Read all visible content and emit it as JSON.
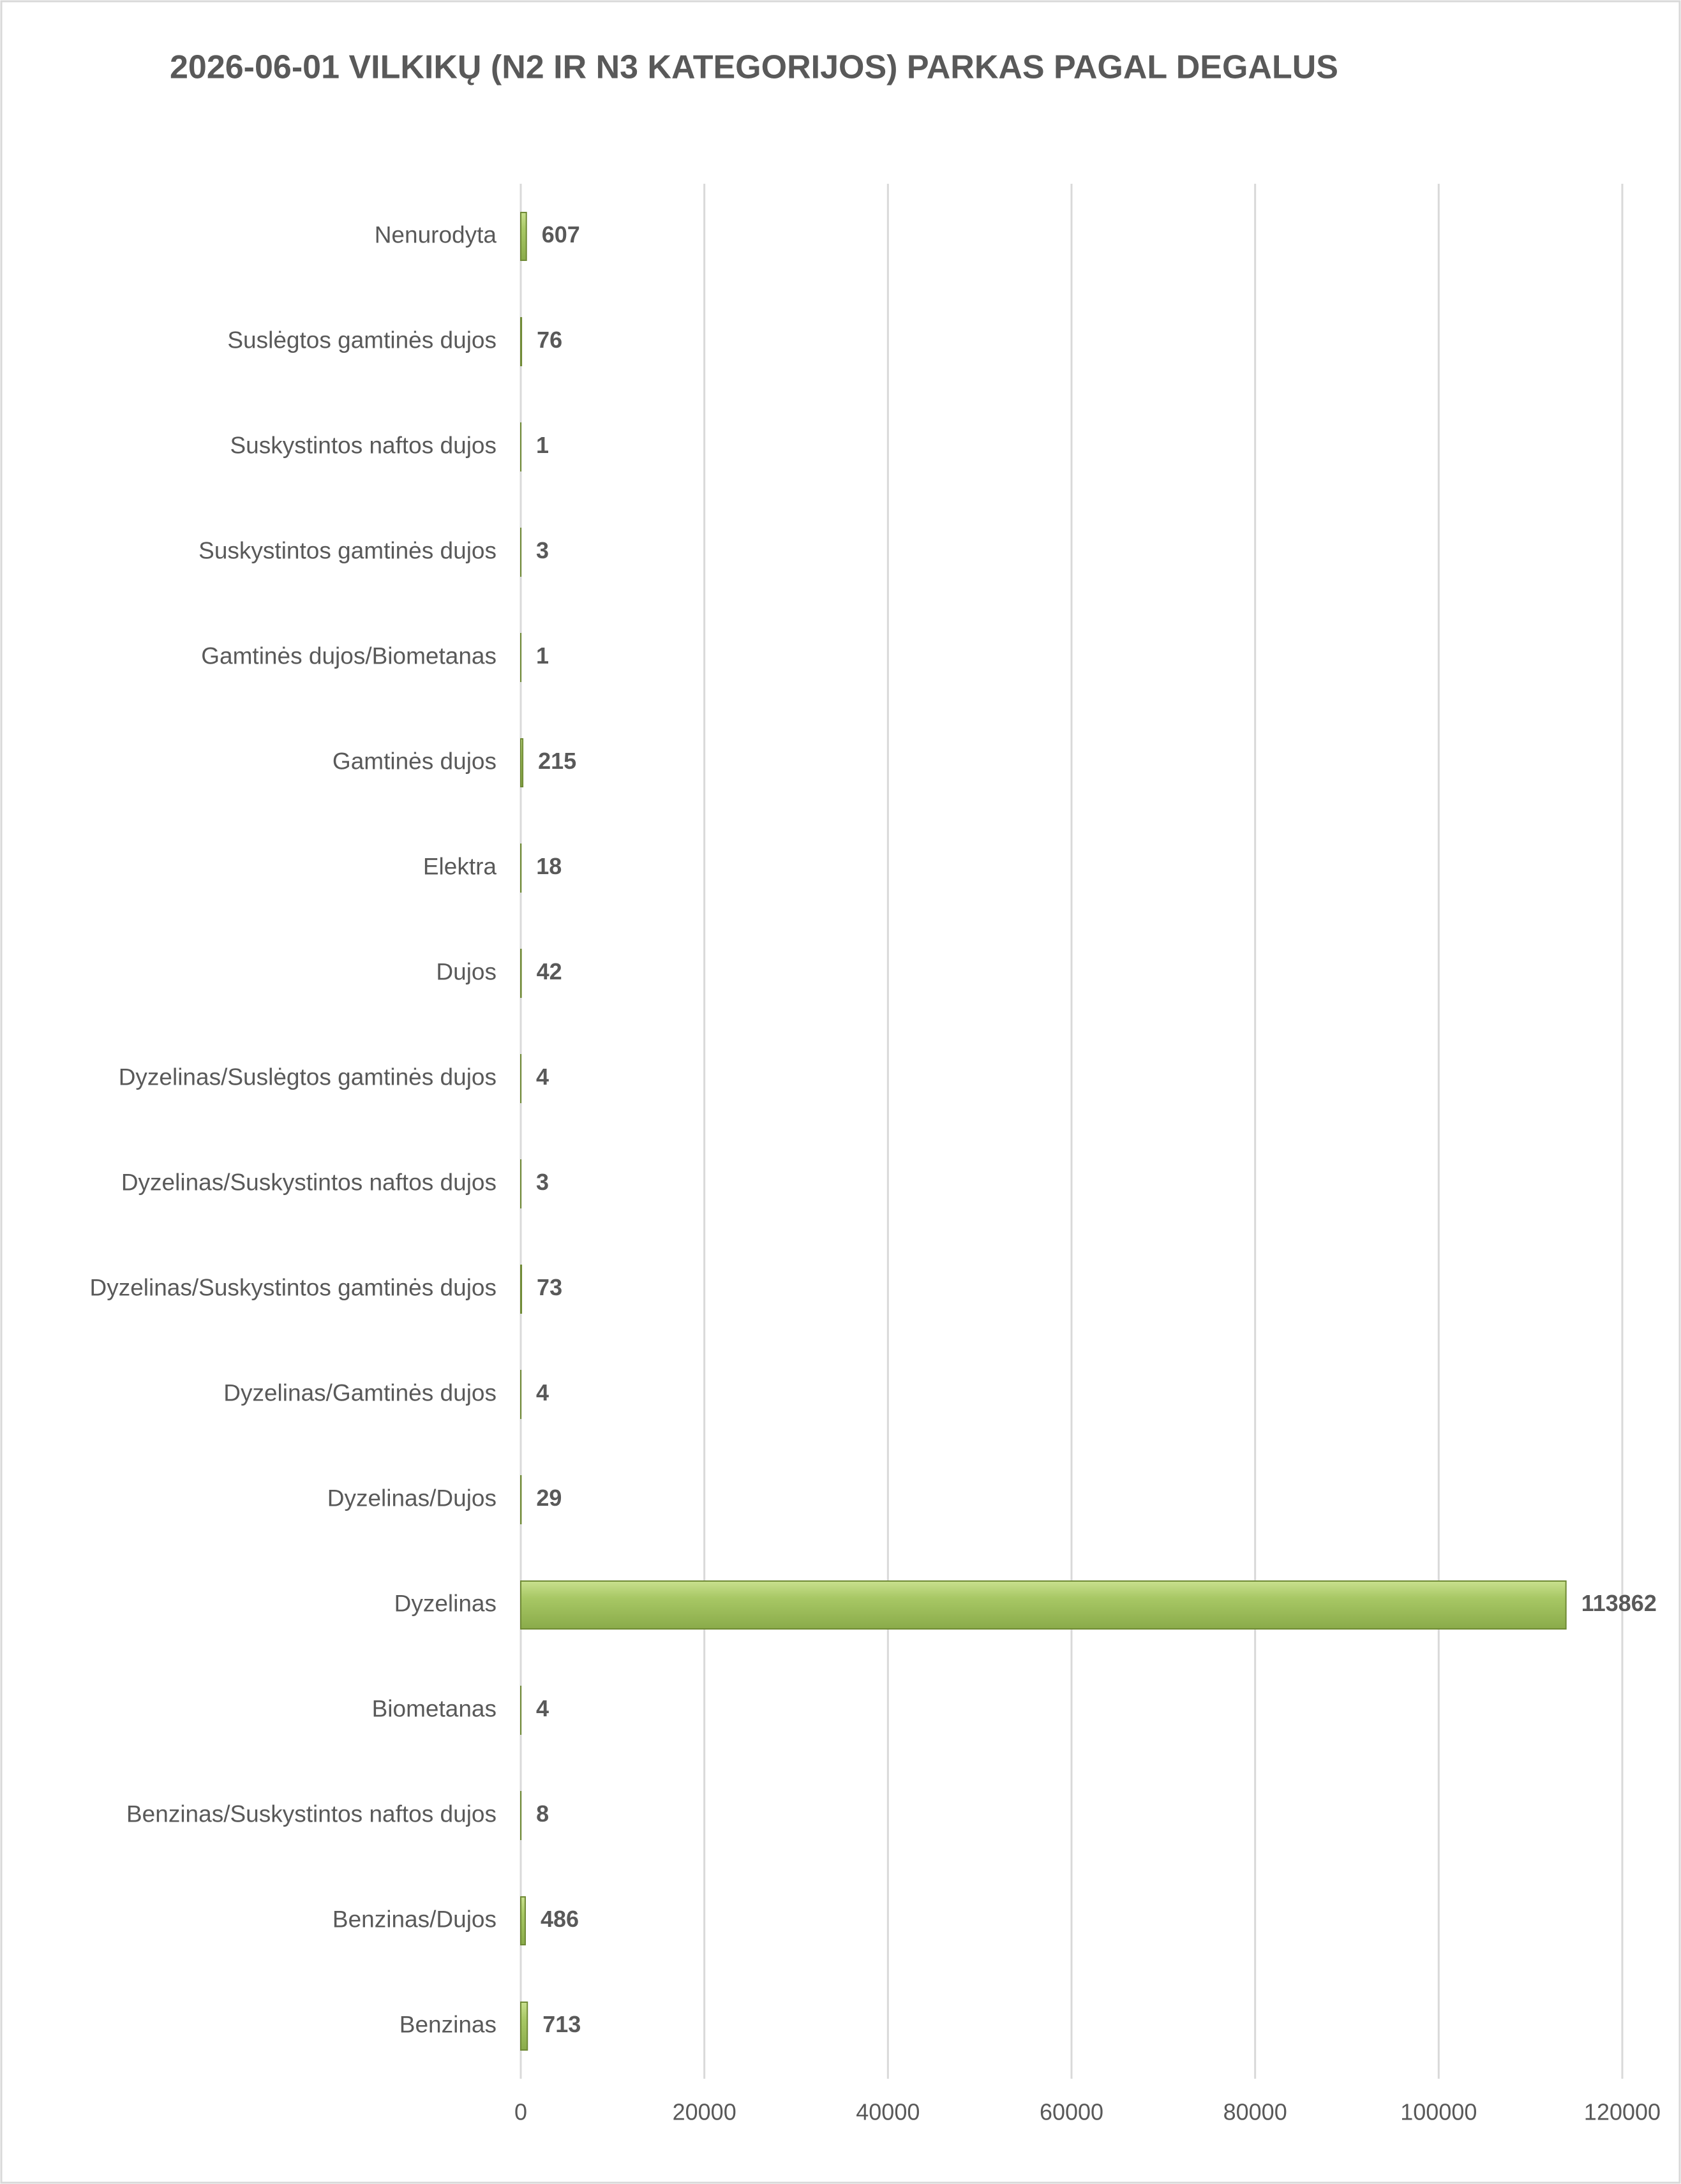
{
  "chart_data": {
    "type": "bar",
    "orientation": "horizontal",
    "title": "2026-06-01 VILKIKŲ (N2 IR N3 KATEGORIJOS) PARKAS PAGAL DEGALUS",
    "categories": [
      "Nenurodyta",
      "Suslėgtos gamtinės dujos",
      "Suskystintos naftos dujos",
      "Suskystintos gamtinės dujos",
      "Gamtinės dujos/Biometanas",
      "Gamtinės dujos",
      "Elektra",
      "Dujos",
      "Dyzelinas/Suslėgtos gamtinės dujos",
      "Dyzelinas/Suskystintos naftos dujos",
      "Dyzelinas/Suskystintos gamtinės dujos",
      "Dyzelinas/Gamtinės dujos",
      "Dyzelinas/Dujos",
      "Dyzelinas",
      "Biometanas",
      "Benzinas/Suskystintos naftos dujos",
      "Benzinas/Dujos",
      "Benzinas"
    ],
    "values": [
      607,
      76,
      1,
      3,
      1,
      215,
      18,
      42,
      4,
      3,
      73,
      4,
      29,
      113862,
      4,
      8,
      486,
      713
    ],
    "color": "#9bbb59",
    "xlim": [
      0,
      120000
    ],
    "xticks": [
      0,
      20000,
      40000,
      60000,
      80000,
      100000,
      120000
    ],
    "grid": true
  }
}
